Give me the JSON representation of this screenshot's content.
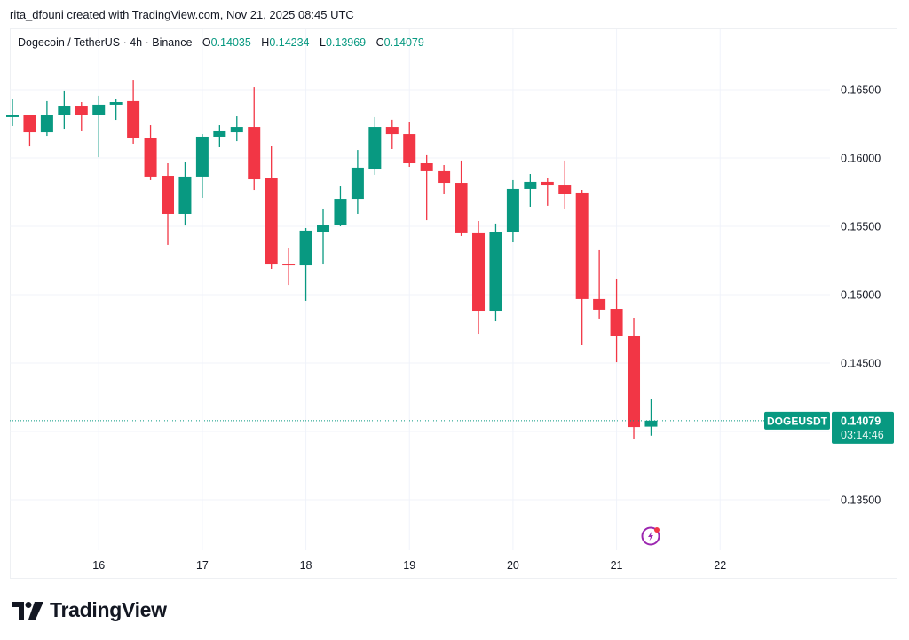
{
  "attribution": "rita_dfouni created with TradingView.com, Nov 21, 2025 08:45 UTC",
  "legend": {
    "symbol_desc": "Dogecoin / TetherUS · 4h · Binance",
    "o_label": "O",
    "o": "0.14035",
    "h_label": "H",
    "h": "0.14234",
    "l_label": "L",
    "l": "0.13969",
    "c_label": "C",
    "c": "0.14079"
  },
  "last_price": {
    "ticker": "DOGEUSDT",
    "price": "0.14079",
    "countdown": "03:14:46"
  },
  "logo": {
    "text": "TradingView"
  },
  "colors": {
    "up": "#089981",
    "down": "#F23645",
    "grid": "#f0f3fa",
    "event_icon": "#9c27b0"
  },
  "chart_data": {
    "type": "candlestick",
    "interval": "4h",
    "x_tick_labels": [
      "16",
      "17",
      "18",
      "19",
      "20",
      "21",
      "22"
    ],
    "y_tick_labels": [
      "0.16500",
      "0.16000",
      "0.15500",
      "0.15000",
      "0.14500",
      "0.13500"
    ],
    "ylim": [
      0.1325,
      0.1685
    ],
    "grid": true,
    "first_candle": "Nov 15 04:00",
    "ohlc": [
      [
        0.16299,
        0.16429,
        0.16234,
        0.16312
      ],
      [
        0.16312,
        0.16318,
        0.16084,
        0.16188
      ],
      [
        0.16188,
        0.16416,
        0.16162,
        0.16318
      ],
      [
        0.16318,
        0.16494,
        0.16214,
        0.16383
      ],
      [
        0.16383,
        0.16409,
        0.16195,
        0.16318
      ],
      [
        0.16318,
        0.16455,
        0.16006,
        0.1639
      ],
      [
        0.1639,
        0.16435,
        0.16279,
        0.16409
      ],
      [
        0.16416,
        0.16571,
        0.16104,
        0.16143
      ],
      [
        0.16143,
        0.1624,
        0.15838,
        0.15864
      ],
      [
        0.1587,
        0.15961,
        0.15364,
        0.15591
      ],
      [
        0.15591,
        0.15974,
        0.15506,
        0.15864
      ],
      [
        0.15864,
        0.16175,
        0.15708,
        0.16156
      ],
      [
        0.16156,
        0.1624,
        0.16078,
        0.16195
      ],
      [
        0.16188,
        0.16305,
        0.16123,
        0.16227
      ],
      [
        0.16227,
        0.16519,
        0.15766,
        0.15844
      ],
      [
        0.15851,
        0.16091,
        0.15188,
        0.15227
      ],
      [
        0.15227,
        0.15344,
        0.15071,
        0.15214
      ],
      [
        0.15214,
        0.15487,
        0.14955,
        0.15468
      ],
      [
        0.15461,
        0.1563,
        0.15227,
        0.15513
      ],
      [
        0.15513,
        0.15792,
        0.155,
        0.15701
      ],
      [
        0.15701,
        0.16058,
        0.15591,
        0.15929
      ],
      [
        0.15922,
        0.16299,
        0.15877,
        0.16227
      ],
      [
        0.16227,
        0.1628,
        0.16065,
        0.16175
      ],
      [
        0.16175,
        0.1626,
        0.15935,
        0.15961
      ],
      [
        0.15961,
        0.1602,
        0.15545,
        0.15903
      ],
      [
        0.15903,
        0.15948,
        0.15734,
        0.15818
      ],
      [
        0.15818,
        0.15981,
        0.15429,
        0.15455
      ],
      [
        0.15455,
        0.15539,
        0.14714,
        0.14883
      ],
      [
        0.14883,
        0.1552,
        0.14805,
        0.15461
      ],
      [
        0.15461,
        0.15838,
        0.15383,
        0.15773
      ],
      [
        0.15773,
        0.15883,
        0.15643,
        0.15825
      ],
      [
        0.15825,
        0.15851,
        0.1565,
        0.15805
      ],
      [
        0.15805,
        0.15981,
        0.1563,
        0.1574
      ],
      [
        0.15747,
        0.15766,
        0.1463,
        0.14968
      ],
      [
        0.14968,
        0.15325,
        0.14825,
        0.1489
      ],
      [
        0.14896,
        0.15117,
        0.14506,
        0.14695
      ],
      [
        0.14695,
        0.14831,
        0.13942,
        0.14032
      ],
      [
        0.14035,
        0.14234,
        0.13969,
        0.14079
      ]
    ]
  }
}
